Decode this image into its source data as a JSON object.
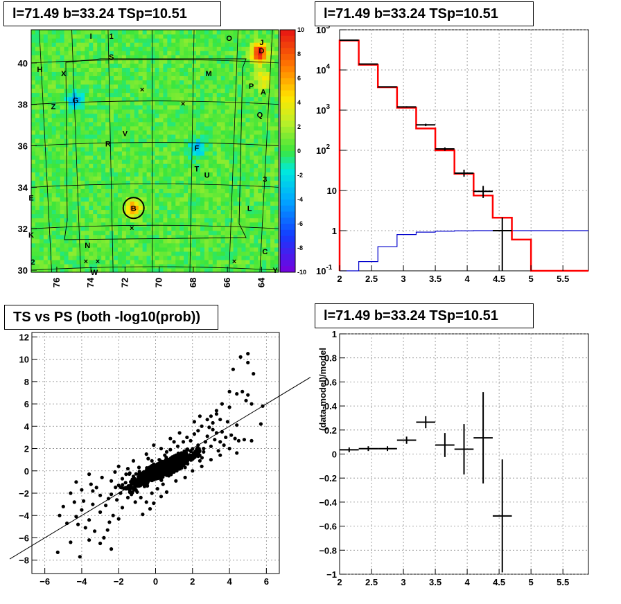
{
  "titles": {
    "map": "l=71.49 b=33.24 TSp=10.51",
    "spectrum": "l=71.49 b=33.24 TSp=10.51",
    "scatter": "TS vs PS (both -log10(prob))",
    "residual": "l=71.49 b=33.24 TSp=10.51"
  },
  "colors": {
    "data": "#000000",
    "model": "#ff0000",
    "background": "#0000cc",
    "grid": "#888888"
  },
  "chart_data": [
    {
      "type": "heatmap",
      "x_ticks": [
        "76",
        "74",
        "72",
        "70",
        "68",
        "66",
        "64"
      ],
      "y_ticks": [
        "30",
        "32",
        "34",
        "36",
        "38",
        "40"
      ],
      "xlim": [
        77.5,
        63.0
      ],
      "ylim": [
        29.9,
        41.6
      ],
      "zlim": [
        -10,
        10
      ],
      "colorbar_ticks": [
        "10",
        "8",
        "6",
        "4",
        "2",
        "0",
        "-2",
        "-4",
        "-6",
        "-8",
        "-10"
      ],
      "source_labels": [
        {
          "text": "I",
          "x": 74.0,
          "y": 41.3
        },
        {
          "text": "1",
          "x": 72.8,
          "y": 41.3
        },
        {
          "text": "O",
          "x": 65.9,
          "y": 41.2
        },
        {
          "text": "J",
          "x": 64.0,
          "y": 41.0
        },
        {
          "text": "D",
          "x": 64.0,
          "y": 40.6
        },
        {
          "text": "S",
          "x": 72.8,
          "y": 40.3
        },
        {
          "text": "H",
          "x": 77.0,
          "y": 39.7
        },
        {
          "text": "X",
          "x": 75.6,
          "y": 39.5
        },
        {
          "text": "M",
          "x": 67.1,
          "y": 39.5
        },
        {
          "text": "P",
          "x": 64.6,
          "y": 38.9
        },
        {
          "text": "A",
          "x": 63.9,
          "y": 38.6
        },
        {
          "text": "G",
          "x": 74.9,
          "y": 38.2
        },
        {
          "text": "Z",
          "x": 76.2,
          "y": 37.9
        },
        {
          "text": "Q",
          "x": 64.1,
          "y": 37.5
        },
        {
          "text": "V",
          "x": 72.0,
          "y": 36.6
        },
        {
          "text": "R",
          "x": 73.0,
          "y": 36.1
        },
        {
          "text": "F",
          "x": 67.8,
          "y": 35.9
        },
        {
          "text": "T",
          "x": 67.8,
          "y": 34.9
        },
        {
          "text": "U",
          "x": 67.2,
          "y": 34.6
        },
        {
          "text": "3",
          "x": 63.8,
          "y": 34.4
        },
        {
          "text": "E",
          "x": 77.5,
          "y": 33.5
        },
        {
          "text": "B",
          "x": 71.5,
          "y": 33.0
        },
        {
          "text": "L",
          "x": 64.7,
          "y": 33.0
        },
        {
          "text": "K",
          "x": 77.5,
          "y": 31.7
        },
        {
          "text": "N",
          "x": 74.2,
          "y": 31.2
        },
        {
          "text": "C",
          "x": 63.8,
          "y": 30.9
        },
        {
          "text": "2",
          "x": 77.4,
          "y": 30.4
        },
        {
          "text": "W",
          "x": 73.8,
          "y": 29.9
        },
        {
          "text": "Y",
          "x": 63.2,
          "y": 30.0
        }
      ],
      "x_markers": [
        {
          "x": 71.0,
          "y": 38.7
        },
        {
          "x": 68.6,
          "y": 38.0
        },
        {
          "x": 71.6,
          "y": 32.0
        },
        {
          "x": 74.3,
          "y": 30.4
        },
        {
          "x": 73.6,
          "y": 30.4
        },
        {
          "x": 65.6,
          "y": 30.4
        }
      ],
      "hotspots": [
        {
          "x": 64.1,
          "y": 40.5,
          "z": 10
        },
        {
          "x": 71.5,
          "y": 33.0,
          "z": 6
        },
        {
          "x": 74.9,
          "y": 38.2,
          "z": -4
        },
        {
          "x": 67.8,
          "y": 35.9,
          "z": -4
        },
        {
          "x": 63.9,
          "y": 39.2,
          "z": 4
        }
      ]
    },
    {
      "type": "line",
      "x_ticks": [
        "2",
        "2.5",
        "3",
        "3.5",
        "4",
        "4.5",
        "5",
        "5.5"
      ],
      "y_ticks": [
        "10^-1",
        "1",
        "10",
        "10^2",
        "10^3",
        "10^4",
        "10^5"
      ],
      "xlim": [
        2.0,
        5.9
      ],
      "ylim": [
        0.1,
        100000
      ],
      "log_y": true,
      "grid": true,
      "bin_edges": [
        2.0,
        2.3,
        2.6,
        2.9,
        3.2,
        3.5,
        3.8,
        4.1,
        4.4,
        4.7,
        5.0,
        5.3,
        5.6,
        5.9
      ],
      "series": [
        {
          "values": [
            54000,
            13500,
            3700,
            1150,
            350,
            100,
            26,
            7.5,
            2.1,
            0.6,
            0.1,
            0.1,
            0.1
          ]
        },
        {
          "values": [
            0.1,
            0.17,
            0.4,
            0.8,
            0.92,
            0.97,
            0.99,
            1.0,
            1.0,
            1.0,
            1.0,
            1.0,
            1.0
          ]
        }
      ],
      "data_points": [
        {
          "x": 2.15,
          "y": 55000,
          "ylo": 54000,
          "yhi": 56000
        },
        {
          "x": 2.45,
          "y": 14000,
          "ylo": 13500,
          "yhi": 14500
        },
        {
          "x": 2.75,
          "y": 3800,
          "ylo": 3700,
          "yhi": 3900
        },
        {
          "x": 3.05,
          "y": 1200,
          "ylo": 1150,
          "yhi": 1250
        },
        {
          "x": 3.35,
          "y": 430,
          "ylo": 400,
          "yhi": 460
        },
        {
          "x": 3.65,
          "y": 108,
          "ylo": 98,
          "yhi": 118
        },
        {
          "x": 3.95,
          "y": 27,
          "ylo": 22,
          "yhi": 33
        },
        {
          "x": 4.25,
          "y": 9.5,
          "ylo": 6.5,
          "yhi": 13
        },
        {
          "x": 4.55,
          "y": 1.0,
          "ylo": 0.1,
          "yhi": 2.1
        }
      ]
    },
    {
      "type": "scatter",
      "x_ticks": [
        "-6",
        "-4",
        "-2",
        "0",
        "2",
        "4",
        "6"
      ],
      "y_ticks": [
        "-8",
        "-6",
        "-4",
        "-2",
        "0",
        "2",
        "4",
        "6",
        "8",
        "10",
        "12"
      ],
      "xlim": [
        -6.7,
        6.7
      ],
      "ylim": [
        -9.2,
        12.4
      ],
      "grid": true,
      "fit_line": {
        "slope": 1.0,
        "intercept": 0.0
      },
      "points": [
        [
          5.0,
          10.5
        ],
        [
          4.6,
          10.2
        ],
        [
          5.0,
          9.7
        ],
        [
          4.2,
          9.1
        ],
        [
          5.3,
          8.7
        ],
        [
          4.0,
          7.1
        ],
        [
          4.7,
          7.1
        ],
        [
          5.0,
          6.8
        ],
        [
          4.4,
          6.9
        ],
        [
          4.9,
          6.3
        ],
        [
          5.2,
          6.0
        ],
        [
          4.0,
          5.7
        ],
        [
          5.8,
          5.8
        ],
        [
          3.6,
          6.0
        ],
        [
          3.3,
          5.1
        ],
        [
          2.8,
          4.6
        ],
        [
          3.1,
          4.3
        ],
        [
          5.7,
          4.2
        ],
        [
          4.5,
          2.7
        ],
        [
          4.8,
          2.8
        ],
        [
          5.2,
          2.7
        ],
        [
          -5.3,
          -7.3
        ],
        [
          -4.1,
          -7.7
        ],
        [
          -4.6,
          -6.4
        ],
        [
          -3.6,
          -6.2
        ],
        [
          -3.0,
          -6.5
        ],
        [
          -3.8,
          -5.1
        ],
        [
          -4.2,
          -4.8
        ],
        [
          -4.8,
          -4.7
        ],
        [
          -2.4,
          -7.0
        ],
        [
          -2.8,
          -6.0
        ],
        [
          -3.3,
          -5.4
        ],
        [
          -5.2,
          -4.0
        ],
        [
          -4.3,
          -4.1
        ],
        [
          -4.0,
          -3.5
        ],
        [
          -3.6,
          -4.4
        ],
        [
          -2.5,
          -4.6
        ],
        [
          -2.3,
          -4.0
        ],
        [
          -4.3,
          -1.0
        ],
        [
          -4.0,
          -1.7
        ],
        [
          -3.6,
          -0.3
        ],
        [
          -3.2,
          -1.5
        ],
        [
          -3.0,
          -2.2
        ],
        [
          -2.7,
          -3.1
        ],
        [
          -2.4,
          -2.1
        ],
        [
          -2.0,
          -1.3
        ],
        [
          -1.8,
          -0.7
        ],
        [
          -2.2,
          -0.1
        ],
        [
          -1.5,
          0.2
        ],
        [
          -1.2,
          -0.5
        ],
        [
          -1.0,
          -1.9
        ],
        [
          -0.8,
          -2.4
        ],
        [
          -0.3,
          -3.4
        ],
        [
          -0.5,
          -2.8
        ],
        [
          -0.2,
          -2.0
        ],
        [
          -0.6,
          -1.4
        ],
        [
          -0.3,
          -0.7
        ],
        [
          0.1,
          -0.2
        ],
        [
          0.4,
          0.5
        ],
        [
          0.6,
          -0.4
        ],
        [
          0.9,
          0.8
        ],
        [
          1.1,
          1.4
        ],
        [
          1.4,
          0.6
        ],
        [
          1.7,
          1.9
        ],
        [
          2.0,
          1.1
        ],
        [
          2.3,
          2.3
        ],
        [
          2.6,
          1.7
        ],
        [
          2.8,
          3.1
        ],
        [
          3.0,
          2.2
        ],
        [
          3.3,
          3.4
        ],
        [
          3.5,
          2.6
        ],
        [
          3.8,
          3.0
        ],
        [
          1.5,
          2.6
        ],
        [
          2.1,
          3.3
        ],
        [
          2.5,
          4.0
        ],
        [
          1.2,
          2.2
        ],
        [
          0.8,
          1.9
        ],
        [
          0.5,
          1.4
        ],
        [
          0.2,
          1.0
        ],
        [
          -0.1,
          0.6
        ],
        [
          -0.4,
          0.1
        ],
        [
          -0.7,
          -0.3
        ],
        [
          -1.0,
          -0.8
        ],
        [
          -1.3,
          -1.2
        ],
        [
          -1.6,
          -1.6
        ],
        [
          -1.9,
          -2.0
        ],
        [
          -2.1,
          -2.6
        ],
        [
          -1.4,
          -0.2
        ],
        [
          -0.9,
          0.3
        ],
        [
          -0.2,
          0.9
        ],
        [
          0.3,
          -0.8
        ],
        [
          0.7,
          0.2
        ],
        [
          1.0,
          -0.1
        ],
        [
          1.3,
          0.9
        ],
        [
          1.8,
          1.3
        ],
        [
          2.2,
          1.8
        ],
        [
          2.7,
          2.6
        ],
        [
          3.2,
          2.8
        ],
        [
          3.6,
          3.5
        ],
        [
          0.0,
          0.0
        ],
        [
          0.2,
          0.3
        ],
        [
          -0.3,
          -0.3
        ],
        [
          0.5,
          0.6
        ],
        [
          -0.6,
          -0.7
        ],
        [
          0.9,
          1.1
        ],
        [
          -0.9,
          -1.1
        ],
        [
          0.4,
          -1.2
        ],
        [
          -0.4,
          1.1
        ],
        [
          1.6,
          0.3
        ],
        [
          -1.6,
          -0.3
        ],
        [
          2.4,
          0.9
        ],
        [
          -2.4,
          -0.9
        ],
        [
          3.4,
          1.8
        ],
        [
          -3.4,
          -1.8
        ],
        [
          2.9,
          3.9
        ],
        [
          3.9,
          4.4
        ],
        [
          3.0,
          4.9
        ],
        [
          3.5,
          4.6
        ],
        [
          -3.0,
          -3.7
        ],
        [
          -2.6,
          -5.3
        ],
        [
          -1.8,
          -3.3
        ],
        [
          -1.1,
          -2.8
        ],
        [
          -0.7,
          -3.9
        ],
        [
          -1.5,
          -2.4
        ],
        [
          -2.0,
          -4.3
        ],
        [
          -3.4,
          -3.0
        ],
        [
          -4.6,
          -2.0
        ],
        [
          -3.9,
          -2.7
        ],
        [
          0.6,
          1.7
        ],
        [
          1.4,
          1.6
        ],
        [
          1.9,
          2.7
        ],
        [
          2.3,
          3.6
        ],
        [
          2.6,
          2.0
        ],
        [
          3.1,
          3.7
        ],
        [
          3.7,
          2.3
        ],
        [
          4.1,
          3.2
        ],
        [
          4.3,
          2.9
        ],
        [
          4.4,
          4.1
        ],
        [
          1.0,
          2.6
        ],
        [
          0.3,
          2.0
        ],
        [
          -0.5,
          1.5
        ],
        [
          -1.2,
          0.9
        ],
        [
          -2.0,
          0.4
        ],
        [
          -2.9,
          -0.6
        ],
        [
          -3.5,
          -1.2
        ],
        [
          -4.4,
          -2.8
        ],
        [
          -5.0,
          -3.2
        ],
        [
          1.7,
          3.0
        ],
        [
          2.1,
          4.4
        ],
        [
          2.4,
          4.9
        ],
        [
          3.3,
          5.4
        ],
        [
          1.3,
          3.4
        ],
        [
          0.8,
          2.9
        ],
        [
          -0.1,
          2.3
        ],
        [
          0.1,
          -1.6
        ],
        [
          0.3,
          -2.3
        ],
        [
          -0.1,
          -2.9
        ],
        [
          0.6,
          -1.9
        ],
        [
          1.1,
          -0.9
        ],
        [
          1.6,
          -0.6
        ],
        [
          2.0,
          0.0
        ],
        [
          2.5,
          0.4
        ],
        [
          3.0,
          1.0
        ],
        [
          3.5,
          1.4
        ],
        [
          4.0,
          2.0
        ],
        [
          4.4,
          1.6
        ]
      ],
      "blob": {
        "cx": 0.3,
        "cy": 0.1,
        "spread": 1.1
      }
    },
    {
      "type": "line",
      "x_ticks": [
        "2",
        "2.5",
        "3",
        "3.5",
        "4",
        "4.5",
        "5",
        "5.5"
      ],
      "y_ticks": [
        "-1",
        "-0.8",
        "-0.6",
        "-0.4",
        "-0.2",
        "0",
        "0.2",
        "0.4",
        "0.6",
        "0.8",
        "1"
      ],
      "xlim": [
        2.0,
        5.9
      ],
      "ylim": [
        -1.0,
        1.0
      ],
      "ylabel": "(data-model)/model",
      "grid": true,
      "points": [
        {
          "x": 2.15,
          "y": 0.035,
          "xerr": 0.15,
          "yerr": 0.02
        },
        {
          "x": 2.45,
          "y": 0.045,
          "xerr": 0.15,
          "yerr": 0.02
        },
        {
          "x": 2.75,
          "y": 0.045,
          "xerr": 0.15,
          "yerr": 0.02
        },
        {
          "x": 3.05,
          "y": 0.115,
          "xerr": 0.15,
          "yerr": 0.03
        },
        {
          "x": 3.35,
          "y": 0.265,
          "xerr": 0.15,
          "yerr": 0.05
        },
        {
          "x": 3.65,
          "y": 0.075,
          "xerr": 0.15,
          "yerr": 0.1
        },
        {
          "x": 3.95,
          "y": 0.04,
          "xerr": 0.15,
          "yerr": 0.21
        },
        {
          "x": 4.25,
          "y": 0.135,
          "xerr": 0.15,
          "yerr": 0.38
        },
        {
          "x": 4.55,
          "y": -0.515,
          "xerr": 0.15,
          "yerr": 0.47
        }
      ]
    }
  ]
}
